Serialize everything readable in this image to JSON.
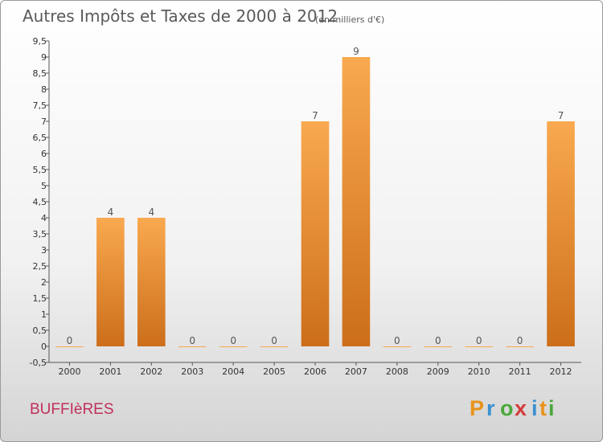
{
  "title": "Autres Impôts et Taxes de 2000 à 2012",
  "subtitle": "(en milliers d'€)",
  "commune": "BUFFIèRES",
  "brand": {
    "letters": [
      "P",
      "r",
      "o",
      "x",
      "i",
      "t",
      "i"
    ],
    "colors": [
      "#e8931c",
      "#3a8fd0",
      "#4aa83a",
      "#d63a3a",
      "#3a8fd0",
      "#e8931c",
      "#4aa83a"
    ]
  },
  "colors": {
    "bar_light": "#f9a94f",
    "bar_dark": "#cc6e1a",
    "axis": "#555555"
  },
  "chart_data": {
    "type": "bar",
    "categories": [
      "2000",
      "2001",
      "2002",
      "2003",
      "2004",
      "2005",
      "2006",
      "2007",
      "2008",
      "2009",
      "2010",
      "2011",
      "2012"
    ],
    "values": [
      0,
      4,
      4,
      0,
      0,
      0,
      7,
      9,
      0,
      0,
      0,
      0,
      7
    ],
    "value_labels": [
      "0",
      "4",
      "4",
      "0",
      "0",
      "0",
      "7",
      "9",
      "0",
      "0",
      "0",
      "0",
      "7"
    ],
    "y_ticks": [
      "-0,5",
      "0",
      "0,5",
      "1",
      "1,5",
      "2",
      "2,5",
      "3",
      "3,5",
      "4",
      "4,5",
      "5",
      "5,5",
      "6",
      "6,5",
      "7",
      "7,5",
      "8",
      "8,5",
      "9",
      "9,5"
    ],
    "ylim": [
      -0.5,
      9.5
    ],
    "xlabel": "",
    "ylabel": "",
    "grid": false
  }
}
